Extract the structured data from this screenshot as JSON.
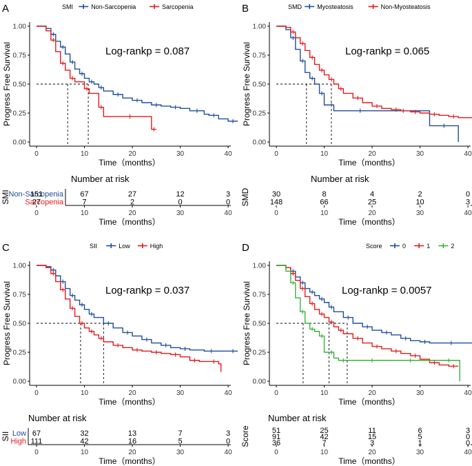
{
  "colors": {
    "blue": "#1f4e9b",
    "red": "#e41a1c",
    "green": "#3ab03a"
  },
  "chart_data": [
    {
      "type": "line",
      "panel": "A",
      "legend_title": "SMI",
      "xlabel": "Time（months）",
      "ylabel": "Progress Free Survival",
      "xlim": [
        0,
        42
      ],
      "ylim": [
        0,
        1
      ],
      "xticks": [
        "0",
        "10",
        "20",
        "30",
        "40"
      ],
      "yticks": [
        "0.00",
        "0.25",
        "0.50",
        "0.75",
        "1.00"
      ],
      "annotation": "Log-rankp = 0.087",
      "medians": [
        6.5,
        10.8
      ],
      "series": [
        {
          "name": "Non-Sarcopenia",
          "color": "blue",
          "x": [
            0,
            2,
            3,
            4,
            5,
            6,
            7,
            8,
            9,
            10,
            11,
            12,
            13,
            14,
            16,
            18,
            20,
            22,
            24,
            26,
            28,
            30,
            32,
            35,
            36,
            38,
            40,
            42
          ],
          "y": [
            1,
            0.98,
            0.93,
            0.87,
            0.82,
            0.76,
            0.69,
            0.63,
            0.59,
            0.55,
            0.52,
            0.5,
            0.47,
            0.44,
            0.41,
            0.38,
            0.36,
            0.34,
            0.32,
            0.31,
            0.3,
            0.29,
            0.27,
            0.24,
            0.23,
            0.2,
            0.18,
            0.18
          ]
        },
        {
          "name": "Sarcopenia",
          "color": "red",
          "x": [
            0,
            2,
            3,
            4,
            5,
            6,
            7,
            8,
            10,
            11,
            13,
            14,
            18,
            21,
            24,
            25
          ],
          "y": [
            1,
            0.96,
            0.88,
            0.78,
            0.68,
            0.62,
            0.55,
            0.52,
            0.46,
            0.42,
            0.3,
            0.22,
            0.22,
            0.22,
            0.11,
            0.11
          ]
        }
      ],
      "risk": {
        "title": "Number at risk",
        "axis_label": "SMI",
        "rows": [
          {
            "name": "Non-Sarcopenia",
            "color": "blue",
            "values": [
              "151",
              "67",
              "27",
              "12",
              "3"
            ]
          },
          {
            "name": "Sarcopenia",
            "color": "red",
            "values": [
              "27",
              "7",
              "2",
              "0",
              "0"
            ]
          }
        ]
      }
    },
    {
      "type": "line",
      "panel": "B",
      "legend_title": "SMD",
      "xlabel": "Time（months）",
      "ylabel": "Progress Free Survival",
      "xlim": [
        0,
        42
      ],
      "ylim": [
        0,
        1
      ],
      "xticks": [
        "0",
        "10",
        "20",
        "30",
        "40"
      ],
      "yticks": [
        "0.00",
        "0.25",
        "0.50",
        "0.75",
        "1.00"
      ],
      "annotation": "Log-rankp = 0.065",
      "medians": [
        6.3,
        11.5
      ],
      "series": [
        {
          "name": "Myosteatosis",
          "color": "blue",
          "x": [
            0,
            2,
            3,
            4,
            5,
            6,
            7,
            8,
            9,
            10,
            11,
            12,
            15,
            20,
            25,
            28,
            32,
            38
          ],
          "y": [
            1,
            0.97,
            0.9,
            0.8,
            0.7,
            0.6,
            0.55,
            0.5,
            0.42,
            0.32,
            0.32,
            0.27,
            0.27,
            0.27,
            0.27,
            0.27,
            0.14,
            0
          ]
        },
        {
          "name": "Non-Myosteatosis",
          "color": "red",
          "x": [
            0,
            2,
            3,
            4,
            5,
            6,
            7,
            8,
            9,
            10,
            11,
            12,
            13,
            14,
            16,
            18,
            20,
            22,
            24,
            26,
            28,
            30,
            32,
            34,
            36,
            38,
            40,
            42
          ],
          "y": [
            1,
            0.99,
            0.95,
            0.9,
            0.85,
            0.79,
            0.73,
            0.67,
            0.62,
            0.58,
            0.54,
            0.5,
            0.46,
            0.42,
            0.38,
            0.34,
            0.31,
            0.29,
            0.28,
            0.27,
            0.26,
            0.25,
            0.24,
            0.23,
            0.22,
            0.21,
            0.21,
            0.21
          ]
        }
      ],
      "risk": {
        "title": "Number at risk",
        "axis_label": "SMD",
        "rows": [
          {
            "name": "Myosteatosis",
            "color": "blue",
            "values": [
              "30",
              "8",
              "4",
              "2",
              "0"
            ]
          },
          {
            "name": "Non-Myosteatosis",
            "color": "red",
            "values": [
              "148",
              "66",
              "25",
              "10",
              "3"
            ]
          }
        ]
      }
    },
    {
      "type": "line",
      "panel": "C",
      "legend_title": "SII",
      "xlabel": "Time（months）",
      "ylabel": "Progress Free Survival",
      "xlim": [
        0,
        42
      ],
      "ylim": [
        0,
        1
      ],
      "xticks": [
        "0",
        "10",
        "20",
        "30",
        "40"
      ],
      "yticks": [
        "0.00",
        "0.25",
        "0.50",
        "0.75",
        "1.00"
      ],
      "annotation": "Log-rankp = 0.037",
      "medians": [
        9.2,
        14
      ],
      "series": [
        {
          "name": "Low",
          "color": "blue",
          "x": [
            0,
            2,
            3,
            4,
            5,
            6,
            7,
            8,
            9,
            10,
            11,
            12,
            14,
            16,
            18,
            20,
            22,
            24,
            26,
            28,
            30,
            32,
            35,
            38,
            40,
            42
          ],
          "y": [
            1,
            0.99,
            0.96,
            0.91,
            0.86,
            0.8,
            0.74,
            0.7,
            0.66,
            0.62,
            0.58,
            0.55,
            0.5,
            0.46,
            0.42,
            0.39,
            0.36,
            0.33,
            0.31,
            0.29,
            0.28,
            0.27,
            0.26,
            0.26,
            0.26,
            0.26
          ]
        },
        {
          "name": "High",
          "color": "red",
          "x": [
            0,
            2,
            3,
            4,
            5,
            6,
            7,
            8,
            9,
            10,
            11,
            12,
            13,
            14,
            16,
            18,
            20,
            22,
            24,
            26,
            28,
            30,
            32,
            34,
            36,
            38,
            38.5
          ],
          "y": [
            1,
            0.98,
            0.93,
            0.86,
            0.79,
            0.71,
            0.63,
            0.56,
            0.5,
            0.46,
            0.43,
            0.4,
            0.37,
            0.34,
            0.31,
            0.29,
            0.27,
            0.26,
            0.25,
            0.24,
            0.23,
            0.21,
            0.18,
            0.17,
            0.17,
            0.15,
            0.08
          ]
        }
      ],
      "risk": {
        "title": "Number at risk",
        "axis_label": "SII",
        "rows": [
          {
            "name": "Low",
            "color": "blue",
            "values": [
              "67",
              "32",
              "13",
              "7",
              "3"
            ]
          },
          {
            "name": "High",
            "color": "red",
            "values": [
              "111",
              "42",
              "16",
              "5",
              "0"
            ]
          }
        ]
      }
    },
    {
      "type": "line",
      "panel": "D",
      "legend_title": "Score",
      "xlabel": "Time（months）",
      "ylabel": "Progress Free Survival",
      "xlim": [
        0,
        42
      ],
      "ylim": [
        0,
        1
      ],
      "xticks": [
        "0",
        "10",
        "20",
        "30",
        "40"
      ],
      "yticks": [
        "0.00",
        "0.25",
        "0.50",
        "0.75",
        "1.00"
      ],
      "annotation": "Log-rankp = 0.0057",
      "medians": [
        5.6,
        11,
        14.8
      ],
      "series": [
        {
          "name": "0",
          "color": "blue",
          "x": [
            0,
            2,
            3,
            4,
            5,
            6,
            7,
            8,
            9,
            10,
            11,
            12,
            14,
            16,
            18,
            20,
            22,
            24,
            26,
            28,
            30,
            32,
            35,
            38,
            40,
            42
          ],
          "y": [
            1,
            0.98,
            0.95,
            0.9,
            0.85,
            0.8,
            0.77,
            0.74,
            0.71,
            0.68,
            0.64,
            0.6,
            0.55,
            0.5,
            0.47,
            0.44,
            0.42,
            0.4,
            0.37,
            0.35,
            0.34,
            0.33,
            0.33,
            0.33,
            0.33,
            0.33
          ]
        },
        {
          "name": "1",
          "color": "red",
          "x": [
            0,
            2,
            3,
            4,
            5,
            6,
            7,
            8,
            9,
            10,
            11,
            12,
            13,
            14,
            16,
            18,
            20,
            22,
            24,
            26,
            28,
            30,
            32,
            34,
            36,
            38
          ],
          "y": [
            1,
            0.98,
            0.93,
            0.87,
            0.8,
            0.73,
            0.67,
            0.62,
            0.58,
            0.55,
            0.51,
            0.47,
            0.44,
            0.41,
            0.37,
            0.33,
            0.3,
            0.28,
            0.26,
            0.24,
            0.22,
            0.19,
            0.16,
            0.14,
            0.13,
            0.13
          ]
        },
        {
          "name": "2",
          "color": "green",
          "x": [
            0,
            2,
            3,
            4,
            5,
            6,
            7,
            8,
            9,
            10,
            11,
            12,
            13,
            15,
            18,
            22,
            26,
            30,
            34,
            38,
            38.3
          ],
          "y": [
            1,
            0.95,
            0.85,
            0.72,
            0.6,
            0.5,
            0.45,
            0.43,
            0.39,
            0.25,
            0.25,
            0.2,
            0.18,
            0.18,
            0.18,
            0.18,
            0.18,
            0.18,
            0.18,
            0.18,
            0
          ]
        }
      ],
      "risk": {
        "title": "Number at risk",
        "axis_label": "Score",
        "rows": [
          {
            "name": "0",
            "color": "blue",
            "values": [
              "51",
              "25",
              "11",
              "6",
              "3"
            ]
          },
          {
            "name": "1",
            "color": "red",
            "values": [
              "91",
              "42",
              "15",
              "5",
              "0"
            ]
          },
          {
            "name": "2",
            "color": "green",
            "values": [
              "36",
              "7",
              "3",
              "1",
              "0"
            ]
          }
        ]
      }
    }
  ]
}
